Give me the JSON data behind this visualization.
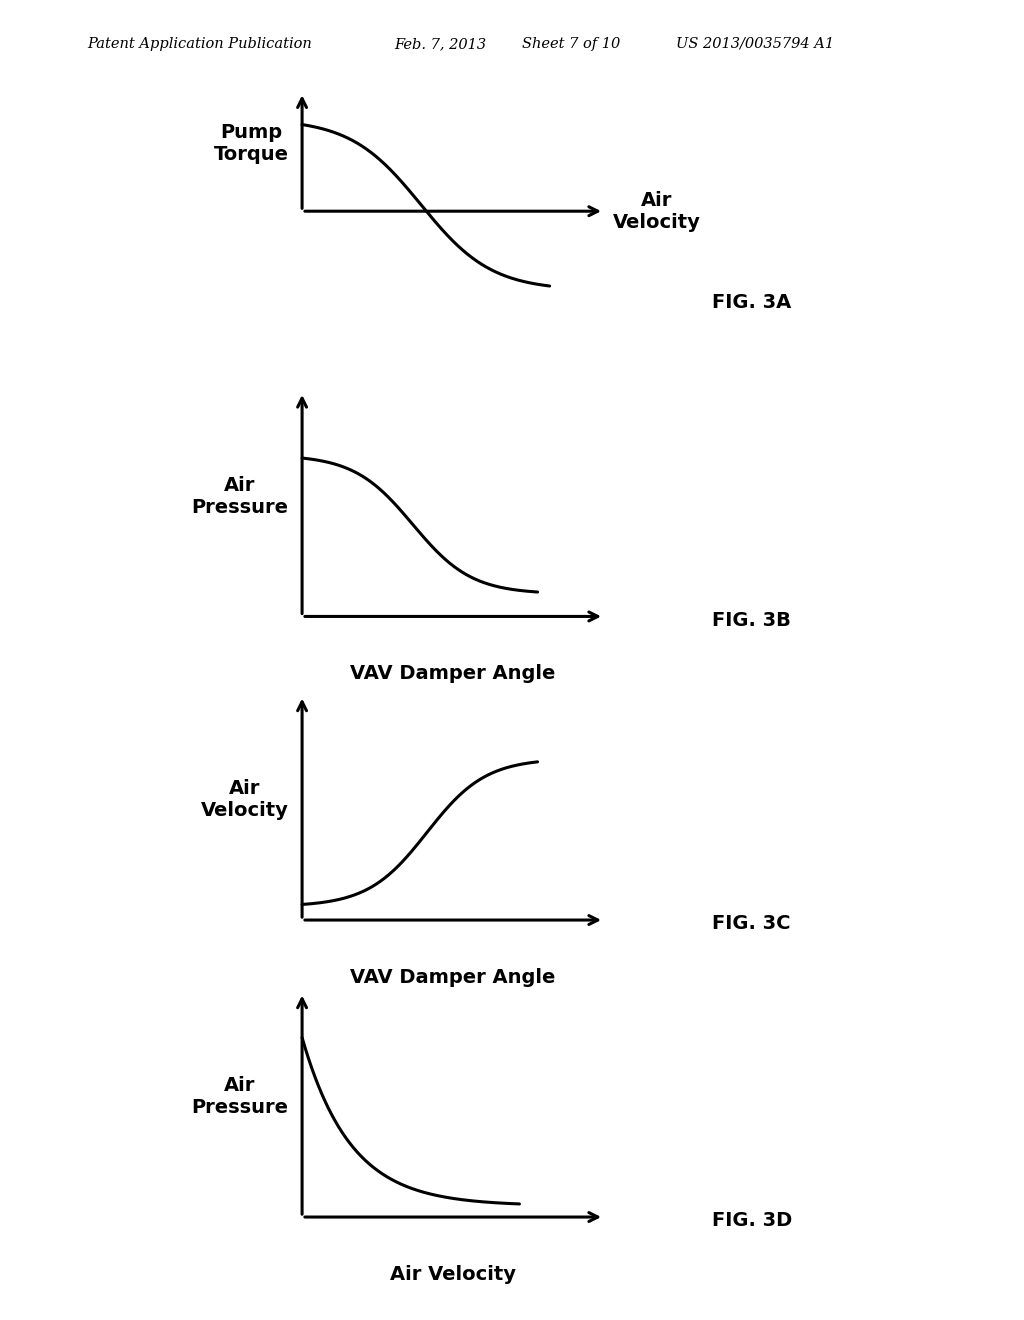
{
  "background_color": "#ffffff",
  "header_text": "Patent Application Publication",
  "header_date": "Feb. 7, 2013",
  "header_sheet": "Sheet 7 of 10",
  "header_patent": "US 2013/0035794 A1",
  "header_fontsize": 10.5,
  "figures": [
    {
      "label": "FIG. 3A",
      "ylabel": "Pump\nTorque",
      "xlabel": "Air\nVelocity",
      "xlabel_on_right": true,
      "curve_type": "sigmoid_decreasing_full",
      "xaxis_mid": true
    },
    {
      "label": "FIG. 3B",
      "ylabel": "Air\nPressure",
      "xlabel": "VAV Damper Angle",
      "xlabel_on_right": false,
      "curve_type": "sigmoid_decreasing",
      "xaxis_mid": false
    },
    {
      "label": "FIG. 3C",
      "ylabel": "Air\nVelocity",
      "xlabel": "VAV Damper Angle",
      "xlabel_on_right": false,
      "curve_type": "sigmoid_increasing",
      "xaxis_mid": false
    },
    {
      "label": "FIG. 3D",
      "ylabel": "Air\nPressure",
      "xlabel": "Air Velocity",
      "xlabel_on_right": false,
      "curve_type": "exponential_decreasing",
      "xaxis_mid": false
    }
  ],
  "axis_label_fontsize": 14,
  "fig_label_fontsize": 14
}
